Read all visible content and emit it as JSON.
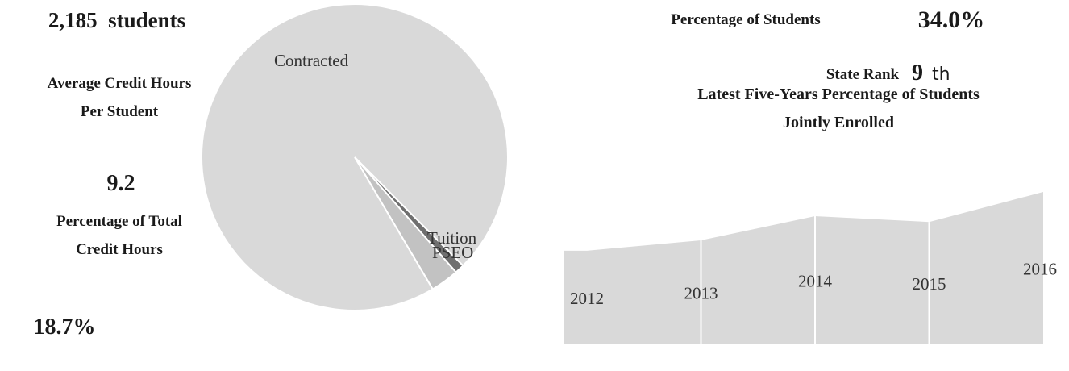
{
  "summary": {
    "students": "2,185  students",
    "avg_label": "Average Credit Hours Per Student",
    "avg_value": "9.2",
    "pct_label": "Percentage of Total Credit Hours",
    "pct_value": "18.7%",
    "students_pct_label": "Percentage of Students",
    "students_pct_value": "34.0%",
    "rank_label": "State Rank",
    "rank_value": "9",
    "rank_suffix": "th"
  },
  "chart_data": [
    {
      "type": "pie",
      "categories": [
        "Contracted",
        "Tuition",
        "PSEO"
      ],
      "values": [
        96,
        1,
        3
      ],
      "colors": [
        "#d9d9d9",
        "#6f6f6f",
        "#c2c2c2"
      ]
    },
    {
      "type": "area",
      "title": "Latest Five-Years Percentage of Students Jointly Enrolled",
      "categories": [
        "2012",
        "2013",
        "2014",
        "2015",
        "2016"
      ],
      "values": [
        20.9,
        23.2,
        28.6,
        27.3,
        34.0
      ],
      "color": "#d9d9d9"
    }
  ]
}
